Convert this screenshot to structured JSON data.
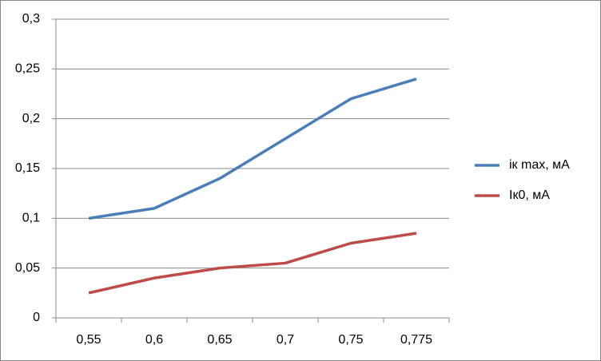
{
  "chart_data": {
    "type": "line",
    "categories": [
      "0,55",
      "0,6",
      "0,65",
      "0,7",
      "0,75",
      "0,775"
    ],
    "series": [
      {
        "name": "iк max, мА",
        "color": "#4a7ebb",
        "values": [
          0.1,
          0.11,
          0.14,
          0.18,
          0.22,
          0.24
        ]
      },
      {
        "name": "Iк0, мА",
        "color": "#be4b48",
        "values": [
          0.025,
          0.04,
          0.05,
          0.055,
          0.075,
          0.085
        ]
      }
    ],
    "ylim": [
      0,
      0.3
    ],
    "yticks": [
      0,
      {
        "value": 0.05,
        "label": "0,05"
      },
      {
        "value": 0.1,
        "label": "0,1"
      },
      {
        "value": 0.15,
        "label": "0,15"
      },
      {
        "value": 0.2,
        "label": "0,2"
      },
      {
        "value": 0.25,
        "label": "0,25"
      },
      {
        "value": 0.3,
        "label": "0,3"
      }
    ],
    "grid": true,
    "legend": "right"
  }
}
